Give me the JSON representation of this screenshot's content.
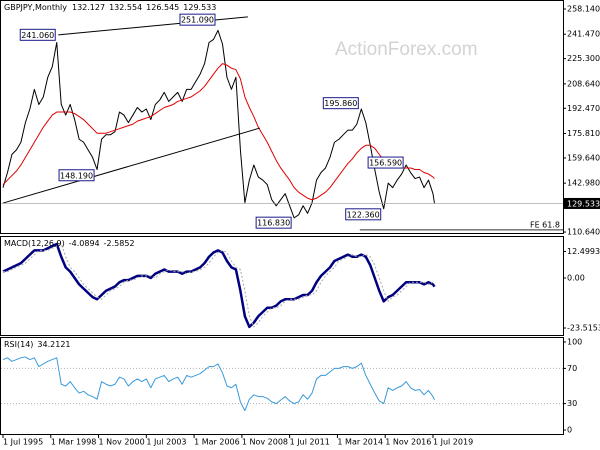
{
  "chart_data": [
    {
      "type": "line",
      "symbol": "GBPJPY,Monthly",
      "ohlc": [
        132.127,
        132.554,
        126.545,
        129.533
      ],
      "watermark": "ActionForex.com",
      "x": [
        "1995-07",
        "1995-10",
        "1996-01",
        "1996-04",
        "1996-07",
        "1996-10",
        "1997-01",
        "1997-04",
        "1997-07",
        "1997-10",
        "1998-01",
        "1998-04",
        "1998-07",
        "1998-10",
        "1999-01",
        "1999-04",
        "1999-07",
        "1999-10",
        "2000-01",
        "2000-04",
        "2000-07",
        "2000-10",
        "2001-01",
        "2001-04",
        "2001-07",
        "2001-10",
        "2002-01",
        "2002-04",
        "2002-07",
        "2002-10",
        "2003-01",
        "2003-04",
        "2003-07",
        "2003-10",
        "2004-01",
        "2004-04",
        "2004-07",
        "2004-10",
        "2005-01",
        "2005-04",
        "2005-07",
        "2005-10",
        "2006-01",
        "2006-04",
        "2006-07",
        "2006-10",
        "2007-01",
        "2007-04",
        "2007-07",
        "2007-10",
        "2008-01",
        "2008-04",
        "2008-07",
        "2008-10",
        "2009-01",
        "2009-04",
        "2009-07",
        "2009-10",
        "2010-01",
        "2010-04",
        "2010-07",
        "2010-10",
        "2011-01",
        "2011-04",
        "2011-07",
        "2011-10",
        "2012-01",
        "2012-04",
        "2012-07",
        "2012-10",
        "2013-01",
        "2013-04",
        "2013-07",
        "2013-10",
        "2014-01",
        "2014-04",
        "2014-07",
        "2014-10",
        "2015-01",
        "2015-04",
        "2015-07",
        "2015-10",
        "2016-01",
        "2016-04",
        "2016-07",
        "2016-10",
        "2017-01",
        "2017-04",
        "2017-07",
        "2017-10",
        "2018-01",
        "2018-04",
        "2018-07",
        "2018-10",
        "2019-01",
        "2019-04",
        "2019-07",
        "2019-08"
      ],
      "series": [
        {
          "color": "#000000",
          "width": 1,
          "values": [
            140,
            150,
            162,
            165,
            170,
            183,
            192,
            205,
            195,
            200,
            213,
            220,
            236,
            195,
            188,
            195,
            185,
            172,
            170,
            165,
            160,
            152,
            172,
            175,
            175,
            177,
            190,
            188,
            183,
            188,
            193,
            190,
            192,
            185,
            195,
            198,
            203,
            197,
            200,
            203,
            197,
            205,
            205,
            210,
            215,
            222,
            236,
            238,
            244,
            235,
            213,
            205,
            213,
            165,
            130,
            145,
            155,
            147,
            145,
            142,
            132,
            128,
            132,
            136,
            128,
            120,
            122,
            128,
            123,
            130,
            145,
            150,
            153,
            160,
            170,
            172,
            175,
            178,
            178,
            182,
            192,
            183,
            168,
            152,
            137,
            126,
            143,
            140,
            145,
            149,
            155,
            150,
            146,
            147,
            140,
            145,
            136,
            129.533
          ]
        },
        {
          "color": "#e00000",
          "width": 1,
          "values": [
            142,
            145,
            148,
            151,
            155,
            160,
            165,
            170,
            175,
            180,
            184,
            188,
            190,
            190,
            190,
            190,
            189,
            187,
            185,
            182,
            179,
            176,
            176,
            176,
            177,
            178,
            179,
            180,
            181,
            182,
            184,
            185,
            186,
            187,
            189,
            191,
            193,
            194,
            195,
            197,
            198,
            199,
            200,
            202,
            204,
            207,
            211,
            215,
            219,
            222,
            221,
            219,
            218,
            212,
            200,
            193,
            187,
            180,
            175,
            170,
            164,
            158,
            153,
            149,
            145,
            140,
            137,
            135,
            133,
            132,
            133,
            135,
            137,
            140,
            144,
            148,
            152,
            156,
            159,
            163,
            166,
            168,
            168,
            166,
            162,
            158,
            156,
            154,
            153,
            153,
            153,
            153,
            152,
            152,
            150,
            149,
            147,
            146
          ]
        }
      ],
      "ylim": [
        110.0,
        263.43
      ],
      "yticks": [
        {
          "value": 258.14,
          "label": "258.140"
        },
        {
          "value": 241.47,
          "label": "241.470"
        },
        {
          "value": 225.3,
          "label": "225.300"
        },
        {
          "value": 208.64,
          "label": "208.640"
        },
        {
          "value": 192.47,
          "label": "192.470"
        },
        {
          "value": 175.81,
          "label": "175.810"
        },
        {
          "value": 159.64,
          "label": "159.640"
        },
        {
          "value": 142.98,
          "label": "142.980"
        },
        {
          "value": 110.64,
          "label": "110.640"
        }
      ],
      "annotations": [
        {
          "x": "1998-08",
          "value": 241.06,
          "label": "241.060"
        },
        {
          "x": "2000-10",
          "value": 148.19,
          "label": "148.190"
        },
        {
          "x": "2007-07",
          "value": 251.09,
          "label": "251.090"
        },
        {
          "x": "2011-10",
          "value": 116.83,
          "label": "116.830"
        },
        {
          "x": "2015-07",
          "value": 195.86,
          "label": "195.860"
        },
        {
          "x": "2016-10",
          "value": 122.36,
          "label": "122.360"
        },
        {
          "x": "2018-01",
          "value": 156.59,
          "label": "156.590"
        }
      ],
      "trendlines": [
        {
          "x": [
            "1998-08",
            "2009-03"
          ],
          "values": [
            241.06,
            252.9
          ]
        },
        {
          "x": [
            "1995-07",
            "2009-11"
          ],
          "values": [
            129.8,
            179.4
          ]
        }
      ],
      "fe_level": {
        "label": "FE 61.8",
        "value": 112.1,
        "x": "2015-06"
      }
    },
    {
      "type": "line",
      "title": "MACD(12,26,9)",
      "series": [
        {
          "color": "#000080",
          "width": 2.5,
          "values": [
            3,
            4,
            5,
            6,
            7,
            9,
            11,
            13,
            13,
            13,
            14,
            15,
            16,
            10,
            5,
            3,
            0,
            -3,
            -5,
            -7,
            -9,
            -10,
            -8,
            -6,
            -5,
            -4,
            -2,
            -1,
            -1,
            0,
            1,
            1,
            1,
            0,
            2,
            3,
            4,
            3,
            3,
            3,
            2,
            3,
            3,
            4,
            5,
            7,
            10,
            12,
            13,
            12,
            8,
            5,
            4,
            -6,
            -18,
            -23,
            -21,
            -18,
            -16,
            -14,
            -14,
            -13,
            -11,
            -10,
            -10,
            -10,
            -9,
            -8,
            -8,
            -6,
            -2,
            1,
            3,
            5,
            8,
            9,
            10,
            11,
            10,
            10,
            11,
            10,
            6,
            0,
            -6,
            -11,
            -9,
            -8,
            -6,
            -4,
            -2,
            -2,
            -2,
            -2,
            -3,
            -2,
            -3,
            -4.0894
          ]
        },
        {
          "color": "#a8a8a8",
          "width": 1,
          "dash": true,
          "values": [
            3,
            3,
            4,
            5,
            6,
            7,
            9,
            11,
            13,
            13,
            13,
            14,
            15,
            16,
            10,
            5,
            3,
            0,
            -3,
            -5,
            -7,
            -9,
            -10,
            -8,
            -6,
            -5,
            -4,
            -2,
            -1,
            -1,
            0,
            1,
            1,
            1,
            0,
            2,
            3,
            4,
            3,
            3,
            3,
            2,
            3,
            3,
            4,
            5,
            7,
            10,
            12,
            13,
            12,
            8,
            5,
            4,
            -6,
            -18,
            -23,
            -21,
            -18,
            -16,
            -14,
            -14,
            -13,
            -11,
            -10,
            -10,
            -10,
            -9,
            -8,
            -8,
            -6,
            -2,
            1,
            3,
            5,
            8,
            9,
            10,
            11,
            10,
            10,
            11,
            10,
            6,
            0,
            -6,
            -11,
            -9,
            -8,
            -6,
            -4,
            -2,
            -2,
            -2,
            -2,
            -3,
            -2,
            -2.5852
          ]
        }
      ],
      "ylim": [
        -26.81,
        19.29
      ],
      "yticks": [
        12.4993,
        {
          "value": 0,
          "label": "0.00"
        },
        -23.5153
      ]
    },
    {
      "type": "line",
      "title": "RSI(14)",
      "series": [
        {
          "color": "#3a9ad9",
          "width": 1,
          "values": [
            80,
            82,
            78,
            80,
            82,
            83,
            80,
            82,
            72,
            75,
            78,
            80,
            82,
            52,
            50,
            55,
            48,
            42,
            44,
            40,
            38,
            35,
            55,
            52,
            50,
            52,
            60,
            58,
            50,
            55,
            58,
            55,
            58,
            48,
            58,
            60,
            62,
            55,
            58,
            60,
            52,
            62,
            60,
            62,
            64,
            68,
            72,
            72,
            75,
            65,
            50,
            48,
            52,
            32,
            22,
            35,
            40,
            38,
            38,
            36,
            32,
            30,
            34,
            38,
            33,
            30,
            32,
            40,
            35,
            42,
            58,
            62,
            62,
            66,
            70,
            70,
            72,
            72,
            70,
            72,
            76,
            62,
            52,
            42,
            33,
            30,
            48,
            45,
            48,
            50,
            55,
            48,
            45,
            46,
            40,
            45,
            38,
            34.2121
          ]
        }
      ],
      "ylim": [
        -4.5,
        104.5
      ],
      "yticks": [
        0,
        30,
        70,
        100
      ],
      "levels": [
        30,
        70
      ],
      "xticks": [
        {
          "value": "1995-07",
          "label": "1 Jul 1995"
        },
        {
          "value": "1998-03",
          "label": "1 Mar 1998"
        },
        {
          "value": "2000-11",
          "label": "1 Nov 2000"
        },
        {
          "value": "2003-07",
          "label": "1 Jul 2003"
        },
        {
          "value": "2006-03",
          "label": "1 Mar 2006"
        },
        {
          "value": "2008-11",
          "label": "1 Nov 2008"
        },
        {
          "value": "2011-07",
          "label": "1 Jul 2011"
        },
        {
          "value": "2014-03",
          "label": "1 Mar 2014"
        },
        {
          "value": "2016-11",
          "label": "1 Nov 2016"
        },
        {
          "value": "2019-07",
          "label": "1 Jul 2019"
        }
      ]
    }
  ]
}
